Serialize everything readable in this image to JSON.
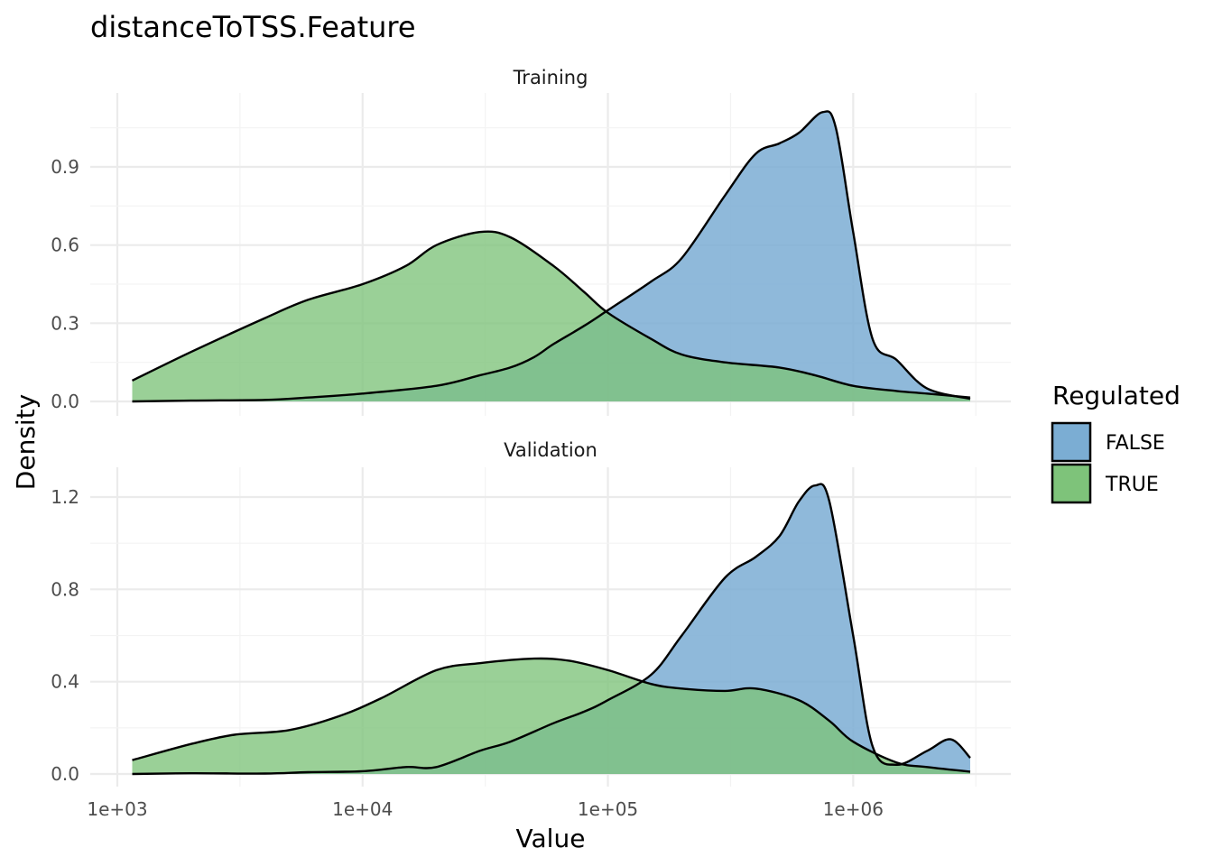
{
  "chart_data": {
    "type": "area",
    "title": "distanceToTSS.Feature",
    "xlabel": "Value",
    "ylabel": "Density",
    "x_scale": "log10",
    "x_ticks": [
      1000,
      10000,
      100000,
      1000000
    ],
    "x_tick_labels": [
      "1e+03",
      "1e+04",
      "1e+05",
      "1e+06"
    ],
    "xlim": [
      1000,
      3000000
    ],
    "legend": {
      "title": "Regulated",
      "placement": "right",
      "items": [
        {
          "label": "FALSE",
          "color": "#7BADD3"
        },
        {
          "label": "TRUE",
          "color": "#7EC37A"
        }
      ]
    },
    "overlap_color": "#5AAC7E",
    "panels": [
      {
        "label": "Training",
        "ylim": [
          0,
          1.2
        ],
        "y_ticks": [
          0.0,
          0.3,
          0.6,
          0.9
        ],
        "y_tick_labels": [
          "0.0",
          "0.3",
          "0.6",
          "0.9"
        ],
        "series": [
          {
            "name": "FALSE",
            "points": [
              [
                1150,
                0.0
              ],
              [
                2000,
                0.003
              ],
              [
                4000,
                0.006
              ],
              [
                6000,
                0.015
              ],
              [
                10000,
                0.03
              ],
              [
                20000,
                0.06
              ],
              [
                30000,
                0.1
              ],
              [
                40000,
                0.13
              ],
              [
                50000,
                0.17
              ],
              [
                60000,
                0.22
              ],
              [
                80000,
                0.29
              ],
              [
                100000,
                0.35
              ],
              [
                150000,
                0.46
              ],
              [
                200000,
                0.55
              ],
              [
                300000,
                0.79
              ],
              [
                400000,
                0.95
              ],
              [
                500000,
                0.99
              ],
              [
                600000,
                1.03
              ],
              [
                750000,
                1.11
              ],
              [
                850000,
                1.05
              ],
              [
                1000000,
                0.65
              ],
              [
                1200000,
                0.24
              ],
              [
                1500000,
                0.16
              ],
              [
                2000000,
                0.05
              ],
              [
                3000000,
                0.01
              ]
            ]
          },
          {
            "name": "TRUE",
            "points": [
              [
                1150,
                0.08
              ],
              [
                2000,
                0.19
              ],
              [
                4000,
                0.32
              ],
              [
                6000,
                0.39
              ],
              [
                10000,
                0.45
              ],
              [
                15000,
                0.52
              ],
              [
                20000,
                0.6
              ],
              [
                30000,
                0.65
              ],
              [
                40000,
                0.63
              ],
              [
                60000,
                0.52
              ],
              [
                80000,
                0.42
              ],
              [
                100000,
                0.34
              ],
              [
                150000,
                0.24
              ],
              [
                200000,
                0.18
              ],
              [
                300000,
                0.15
              ],
              [
                500000,
                0.13
              ],
              [
                700000,
                0.1
              ],
              [
                1000000,
                0.06
              ],
              [
                1500000,
                0.04
              ],
              [
                2000000,
                0.03
              ],
              [
                3000000,
                0.015
              ]
            ]
          }
        ]
      },
      {
        "label": "Validation",
        "ylim": [
          0,
          1.32
        ],
        "y_ticks": [
          0.0,
          0.4,
          0.8,
          1.2
        ],
        "y_tick_labels": [
          "0.0",
          "0.4",
          "0.8",
          "1.2"
        ],
        "series": [
          {
            "name": "FALSE",
            "points": [
              [
                1150,
                0.0
              ],
              [
                2000,
                0.003
              ],
              [
                4000,
                0.002
              ],
              [
                6000,
                0.008
              ],
              [
                10000,
                0.012
              ],
              [
                15000,
                0.03
              ],
              [
                20000,
                0.03
              ],
              [
                30000,
                0.1
              ],
              [
                40000,
                0.14
              ],
              [
                60000,
                0.22
              ],
              [
                80000,
                0.27
              ],
              [
                100000,
                0.32
              ],
              [
                150000,
                0.43
              ],
              [
                200000,
                0.6
              ],
              [
                300000,
                0.85
              ],
              [
                400000,
                0.94
              ],
              [
                500000,
                1.03
              ],
              [
                600000,
                1.18
              ],
              [
                700000,
                1.25
              ],
              [
                800000,
                1.18
              ],
              [
                1000000,
                0.6
              ],
              [
                1200000,
                0.12
              ],
              [
                1500000,
                0.04
              ],
              [
                2000000,
                0.1
              ],
              [
                2500000,
                0.15
              ],
              [
                3000000,
                0.07
              ]
            ]
          },
          {
            "name": "TRUE",
            "points": [
              [
                1150,
                0.06
              ],
              [
                2000,
                0.13
              ],
              [
                3000,
                0.17
              ],
              [
                5000,
                0.19
              ],
              [
                8000,
                0.25
              ],
              [
                12000,
                0.33
              ],
              [
                20000,
                0.45
              ],
              [
                30000,
                0.48
              ],
              [
                50000,
                0.5
              ],
              [
                70000,
                0.49
              ],
              [
                100000,
                0.45
              ],
              [
                150000,
                0.39
              ],
              [
                200000,
                0.37
              ],
              [
                300000,
                0.36
              ],
              [
                400000,
                0.37
              ],
              [
                600000,
                0.32
              ],
              [
                800000,
                0.23
              ],
              [
                1000000,
                0.14
              ],
              [
                1500000,
                0.05
              ],
              [
                2000000,
                0.03
              ],
              [
                3000000,
                0.01
              ]
            ]
          }
        ]
      }
    ]
  }
}
